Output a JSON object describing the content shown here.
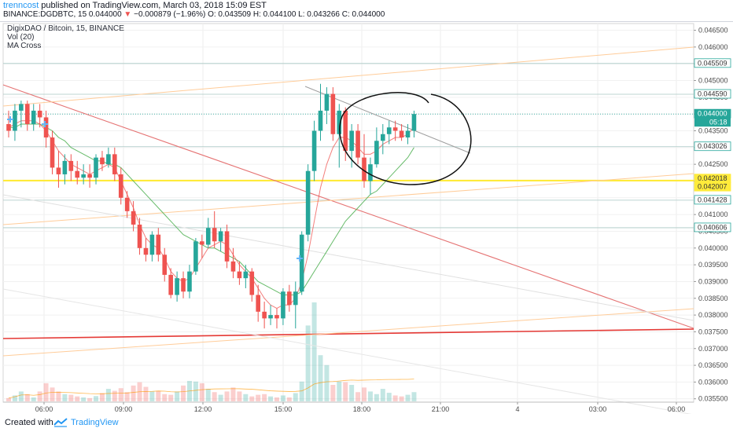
{
  "header": {
    "author": "trenncost",
    "published": " published on TradingView.com, March 03, 2018 15:09 EST",
    "symbol": "BINANCE:DGDBTC, 15",
    "last": "0.044000",
    "change": "−0.000879 (−1.96%)",
    "ohlc": "O: 0.043509 H: 0.044100 L: 0.043266 C: 0.044000"
  },
  "legend": {
    "title": "DigixDAO / Bitcoin, 15, BINANCE",
    "vol": "Vol (20)",
    "ma": "MA Cross"
  },
  "footer": {
    "created": "Created with",
    "brand": "TradingView"
  },
  "colors": {
    "up": "#26a69a",
    "down": "#ef5350",
    "ma_fast": "#ef5350",
    "ma_slow": "#4caf50",
    "highlight": "#ffeb3b",
    "accent": "#2196f3"
  },
  "chart_data": {
    "type": "candlestick",
    "x_ticks": [
      "06:00",
      "09:00",
      "12:00",
      "15:00",
      "18:00",
      "21:00",
      "4",
      "03:00",
      "06:00"
    ],
    "y_ticks": [
      "0.046500",
      "0.046000",
      "0.045500",
      "0.045000",
      "0.044500",
      "0.044000",
      "0.043500",
      "0.043000",
      "0.042500",
      "0.042000",
      "0.041500",
      "0.041000",
      "0.040500",
      "0.040000",
      "0.039500",
      "0.039000",
      "0.038500",
      "0.038000",
      "0.037500",
      "0.037000",
      "0.036500",
      "0.036000",
      "0.035500"
    ],
    "ylim": [
      0.0354,
      0.0467
    ],
    "price_labels": [
      {
        "label": "0.045509",
        "value": 0.045509,
        "style": "line"
      },
      {
        "label": "0.044590",
        "value": 0.04459,
        "style": "line"
      },
      {
        "label": "0.044000",
        "value": 0.044,
        "style": "current",
        "sub": "05:18"
      },
      {
        "label": "0.043026",
        "value": 0.043026,
        "style": "line"
      },
      {
        "label": "0.042018",
        "value": 0.042018,
        "style": "yellow"
      },
      {
        "label": "0.042007",
        "value": 0.042007,
        "style": "yellow"
      },
      {
        "label": "0.041428",
        "value": 0.041428,
        "style": "line"
      },
      {
        "label": "0.040606",
        "value": 0.040606,
        "style": "line"
      }
    ],
    "candles": [
      {
        "o": 0.0437,
        "h": 0.0441,
        "l": 0.0433,
        "c": 0.0435
      },
      {
        "o": 0.0435,
        "h": 0.0443,
        "l": 0.0432,
        "c": 0.0441
      },
      {
        "o": 0.0441,
        "h": 0.0444,
        "l": 0.0436,
        "c": 0.0443
      },
      {
        "o": 0.0443,
        "h": 0.0444,
        "l": 0.0435,
        "c": 0.0437
      },
      {
        "o": 0.0437,
        "h": 0.0443,
        "l": 0.0435,
        "c": 0.0441
      },
      {
        "o": 0.0441,
        "h": 0.0443,
        "l": 0.0436,
        "c": 0.0439
      },
      {
        "o": 0.0439,
        "h": 0.0441,
        "l": 0.043,
        "c": 0.0433
      },
      {
        "o": 0.0433,
        "h": 0.0435,
        "l": 0.0422,
        "c": 0.0424
      },
      {
        "o": 0.0424,
        "h": 0.0429,
        "l": 0.0418,
        "c": 0.0422
      },
      {
        "o": 0.0422,
        "h": 0.0428,
        "l": 0.0419,
        "c": 0.0426
      },
      {
        "o": 0.0426,
        "h": 0.0428,
        "l": 0.042,
        "c": 0.0423
      },
      {
        "o": 0.0423,
        "h": 0.0426,
        "l": 0.0419,
        "c": 0.0421
      },
      {
        "o": 0.0421,
        "h": 0.0425,
        "l": 0.0419,
        "c": 0.0422
      },
      {
        "o": 0.0422,
        "h": 0.0425,
        "l": 0.0418,
        "c": 0.0421
      },
      {
        "o": 0.0421,
        "h": 0.0428,
        "l": 0.0419,
        "c": 0.0427
      },
      {
        "o": 0.0427,
        "h": 0.0429,
        "l": 0.0423,
        "c": 0.0425
      },
      {
        "o": 0.0425,
        "h": 0.043,
        "l": 0.0424,
        "c": 0.0428
      },
      {
        "o": 0.0428,
        "h": 0.043,
        "l": 0.042,
        "c": 0.0422
      },
      {
        "o": 0.0422,
        "h": 0.0424,
        "l": 0.0413,
        "c": 0.0415
      },
      {
        "o": 0.0415,
        "h": 0.0417,
        "l": 0.0409,
        "c": 0.0411
      },
      {
        "o": 0.0411,
        "h": 0.0414,
        "l": 0.0405,
        "c": 0.0407
      },
      {
        "o": 0.0407,
        "h": 0.0409,
        "l": 0.0398,
        "c": 0.04
      },
      {
        "o": 0.04,
        "h": 0.0403,
        "l": 0.0396,
        "c": 0.0398
      },
      {
        "o": 0.0398,
        "h": 0.0405,
        "l": 0.0396,
        "c": 0.0404
      },
      {
        "o": 0.0404,
        "h": 0.0406,
        "l": 0.0396,
        "c": 0.0398
      },
      {
        "o": 0.0398,
        "h": 0.04,
        "l": 0.039,
        "c": 0.0392
      },
      {
        "o": 0.0392,
        "h": 0.0394,
        "l": 0.0385,
        "c": 0.0386
      },
      {
        "o": 0.0386,
        "h": 0.0393,
        "l": 0.0384,
        "c": 0.0391
      },
      {
        "o": 0.0391,
        "h": 0.0393,
        "l": 0.0385,
        "c": 0.0387
      },
      {
        "o": 0.0387,
        "h": 0.0395,
        "l": 0.0385,
        "c": 0.0393
      },
      {
        "o": 0.0393,
        "h": 0.0403,
        "l": 0.0392,
        "c": 0.0402
      },
      {
        "o": 0.0402,
        "h": 0.0404,
        "l": 0.0397,
        "c": 0.0401
      },
      {
        "o": 0.0401,
        "h": 0.0409,
        "l": 0.04,
        "c": 0.0406
      },
      {
        "o": 0.0406,
        "h": 0.0411,
        "l": 0.04,
        "c": 0.0402
      },
      {
        "o": 0.0402,
        "h": 0.0406,
        "l": 0.0399,
        "c": 0.0405
      },
      {
        "o": 0.0405,
        "h": 0.0407,
        "l": 0.0394,
        "c": 0.0396
      },
      {
        "o": 0.0396,
        "h": 0.04,
        "l": 0.0391,
        "c": 0.0393
      },
      {
        "o": 0.0393,
        "h": 0.0396,
        "l": 0.0389,
        "c": 0.0391
      },
      {
        "o": 0.0391,
        "h": 0.0395,
        "l": 0.0388,
        "c": 0.0393
      },
      {
        "o": 0.0393,
        "h": 0.0394,
        "l": 0.0384,
        "c": 0.0386
      },
      {
        "o": 0.0386,
        "h": 0.0389,
        "l": 0.0378,
        "c": 0.0381
      },
      {
        "o": 0.0381,
        "h": 0.0384,
        "l": 0.0376,
        "c": 0.0379
      },
      {
        "o": 0.0379,
        "h": 0.0383,
        "l": 0.0377,
        "c": 0.038
      },
      {
        "o": 0.038,
        "h": 0.0382,
        "l": 0.0376,
        "c": 0.0379
      },
      {
        "o": 0.0379,
        "h": 0.0388,
        "l": 0.0377,
        "c": 0.0387
      },
      {
        "o": 0.0387,
        "h": 0.0389,
        "l": 0.0381,
        "c": 0.0383
      },
      {
        "o": 0.0383,
        "h": 0.039,
        "l": 0.0376,
        "c": 0.0387
      },
      {
        "o": 0.0387,
        "h": 0.0405,
        "l": 0.0386,
        "c": 0.0404
      },
      {
        "o": 0.0404,
        "h": 0.0425,
        "l": 0.0402,
        "c": 0.0423
      },
      {
        "o": 0.0423,
        "h": 0.0438,
        "l": 0.042,
        "c": 0.0435
      },
      {
        "o": 0.0435,
        "h": 0.0449,
        "l": 0.0432,
        "c": 0.0441
      },
      {
        "o": 0.0441,
        "h": 0.0448,
        "l": 0.0437,
        "c": 0.0446
      },
      {
        "o": 0.0446,
        "h": 0.0448,
        "l": 0.0432,
        "c": 0.0434
      },
      {
        "o": 0.0434,
        "h": 0.0443,
        "l": 0.0424,
        "c": 0.0441
      },
      {
        "o": 0.0441,
        "h": 0.0442,
        "l": 0.0426,
        "c": 0.0429
      },
      {
        "o": 0.0429,
        "h": 0.0437,
        "l": 0.0424,
        "c": 0.0435
      },
      {
        "o": 0.0435,
        "h": 0.0437,
        "l": 0.0425,
        "c": 0.0427
      },
      {
        "o": 0.0427,
        "h": 0.0434,
        "l": 0.0418,
        "c": 0.042
      },
      {
        "o": 0.042,
        "h": 0.0427,
        "l": 0.0416,
        "c": 0.0425
      },
      {
        "o": 0.0425,
        "h": 0.0436,
        "l": 0.0424,
        "c": 0.0432
      },
      {
        "o": 0.0432,
        "h": 0.0437,
        "l": 0.0428,
        "c": 0.0434
      },
      {
        "o": 0.0434,
        "h": 0.0438,
        "l": 0.0431,
        "c": 0.0436
      },
      {
        "o": 0.0436,
        "h": 0.0438,
        "l": 0.0432,
        "c": 0.0435
      },
      {
        "o": 0.0435,
        "h": 0.0437,
        "l": 0.0432,
        "c": 0.0433
      },
      {
        "o": 0.0433,
        "h": 0.0437,
        "l": 0.0431,
        "c": 0.0435
      },
      {
        "o": 0.0435,
        "h": 0.0441,
        "l": 0.0433,
        "c": 0.044
      }
    ],
    "volume": [
      0.1,
      0.18,
      0.3,
      0.22,
      0.12,
      0.3,
      0.55,
      0.42,
      0.3,
      0.22,
      0.2,
      0.15,
      0.12,
      0.1,
      0.16,
      0.25,
      0.38,
      0.32,
      0.4,
      0.28,
      0.48,
      0.58,
      0.44,
      0.3,
      0.32,
      0.22,
      0.2,
      0.3,
      0.48,
      0.62,
      0.6,
      0.55,
      0.38,
      0.28,
      0.2,
      0.3,
      0.42,
      0.3,
      0.22,
      0.15,
      0.2,
      0.22,
      0.15,
      0.12,
      0.18,
      0.12,
      0.25,
      0.6,
      2.3,
      3.0,
      1.4,
      1.1,
      0.5,
      0.6,
      0.58,
      0.5,
      0.28,
      0.42,
      0.3,
      0.22,
      0.38,
      0.26,
      0.18,
      0.15,
      0.2,
      0.28
    ],
    "ma_fast": [
      0.0436,
      0.0437,
      0.0438,
      0.0438,
      0.0438,
      0.0437,
      0.0435,
      0.0432,
      0.0429,
      0.0427,
      0.0425,
      0.0424,
      0.0423,
      0.0422,
      0.0423,
      0.0424,
      0.0425,
      0.0424,
      0.042,
      0.0416,
      0.0412,
      0.0407,
      0.0403,
      0.0401,
      0.04,
      0.0397,
      0.0393,
      0.0391,
      0.039,
      0.0391,
      0.0394,
      0.0397,
      0.04,
      0.0401,
      0.0402,
      0.0401,
      0.0398,
      0.0395,
      0.0393,
      0.0391,
      0.0388,
      0.0385,
      0.0383,
      0.0382,
      0.0383,
      0.0383,
      0.0385,
      0.039,
      0.0398,
      0.0408,
      0.0418,
      0.0425,
      0.043,
      0.0433,
      0.0433,
      0.0432,
      0.043,
      0.0428,
      0.0428,
      0.0429,
      0.0431,
      0.0432,
      0.0433,
      0.0433,
      0.0434,
      0.0436
    ],
    "ma_slow": [
      0.0436,
      0.0436,
      0.0437,
      0.0437,
      0.0437,
      0.0437,
      0.0436,
      0.0435,
      0.0433,
      0.0432,
      0.043,
      0.0429,
      0.0428,
      0.0427,
      0.0426,
      0.0426,
      0.0425,
      0.0425,
      0.0424,
      0.0422,
      0.042,
      0.0418,
      0.0416,
      0.0414,
      0.0412,
      0.041,
      0.0408,
      0.0406,
      0.0404,
      0.0403,
      0.0402,
      0.0401,
      0.04,
      0.04,
      0.0399,
      0.0398,
      0.0397,
      0.0396,
      0.0394,
      0.0392,
      0.039,
      0.0389,
      0.0388,
      0.0387,
      0.0386,
      0.0386,
      0.0386,
      0.0387,
      0.039,
      0.0393,
      0.0396,
      0.0399,
      0.0402,
      0.0405,
      0.0408,
      0.041,
      0.0412,
      0.0414,
      0.0416,
      0.0417,
      0.0419,
      0.0421,
      0.0423,
      0.0425,
      0.0427,
      0.043
    ]
  }
}
